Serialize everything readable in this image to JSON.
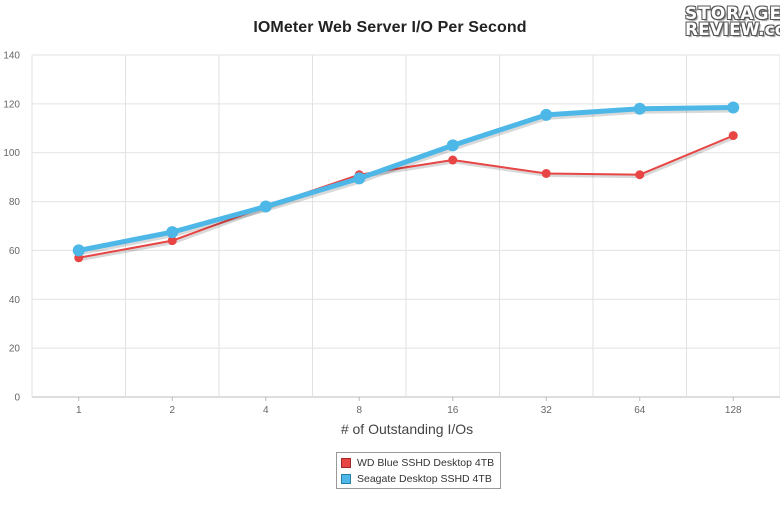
{
  "chart_data": {
    "type": "line",
    "title": "IOMeter Web Server I/O Per Second",
    "xlabel": "# of Outstanding I/Os",
    "ylabel": "",
    "categories": [
      "1",
      "2",
      "4",
      "8",
      "16",
      "32",
      "64",
      "128"
    ],
    "ylim": [
      0,
      140
    ],
    "yticks": [
      0,
      20,
      40,
      60,
      80,
      100,
      120,
      140
    ],
    "grid": true,
    "legend_position": "bottom-center",
    "series": [
      {
        "name": "WD Blue SSHD Desktop 4TB",
        "color": "#e84545",
        "values": [
          57,
          64,
          78,
          91,
          97,
          91.5,
          91,
          107
        ]
      },
      {
        "name": "Seagate Desktop SSHD 4TB",
        "color": "#4db8e8",
        "values": [
          60,
          67.5,
          78,
          89.5,
          103,
          115.5,
          118,
          118.5
        ]
      }
    ]
  },
  "logo": {
    "line1": "STORAGE",
    "line2": "REVIEW.com"
  }
}
